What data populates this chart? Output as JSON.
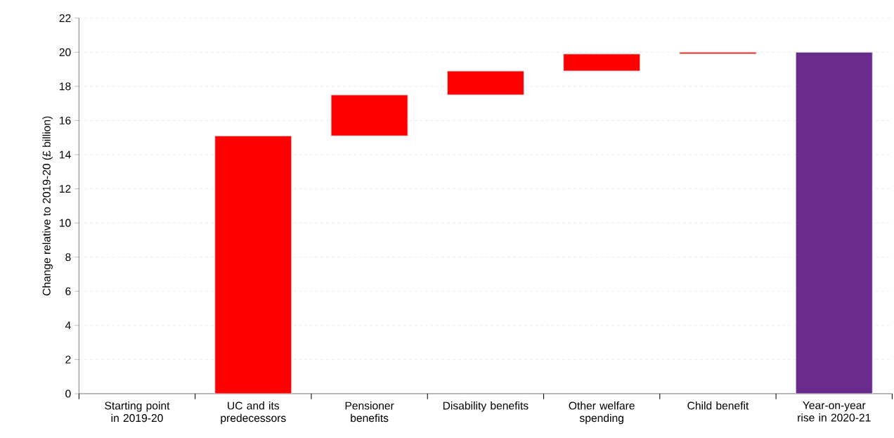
{
  "chart_data": {
    "type": "bar",
    "ylabel": "Change relative to 2019-20 (£ billion)",
    "categories": [
      "Starting point in 2019-20",
      "UC and its predecessors",
      "Pensioner benefits",
      "Disability benefits",
      "Other welfare spending",
      "Child benefit",
      "Year-on-year rise in 2020-21"
    ],
    "values": [
      null,
      15.1,
      2.4,
      1.4,
      1.0,
      0.1,
      20.0
    ],
    "base": [
      null,
      0,
      15.1,
      17.5,
      18.9,
      19.9,
      0
    ],
    "colors": [
      "#ff0000",
      "#ff0000",
      "#ff0000",
      "#ff0000",
      "#ff0000",
      "#ff0000",
      "#692c8d"
    ],
    "ylim": [
      0,
      22
    ],
    "yticks": [
      0,
      2,
      4,
      6,
      8,
      10,
      12,
      14,
      16,
      18,
      20,
      22
    ],
    "grid": "y"
  }
}
